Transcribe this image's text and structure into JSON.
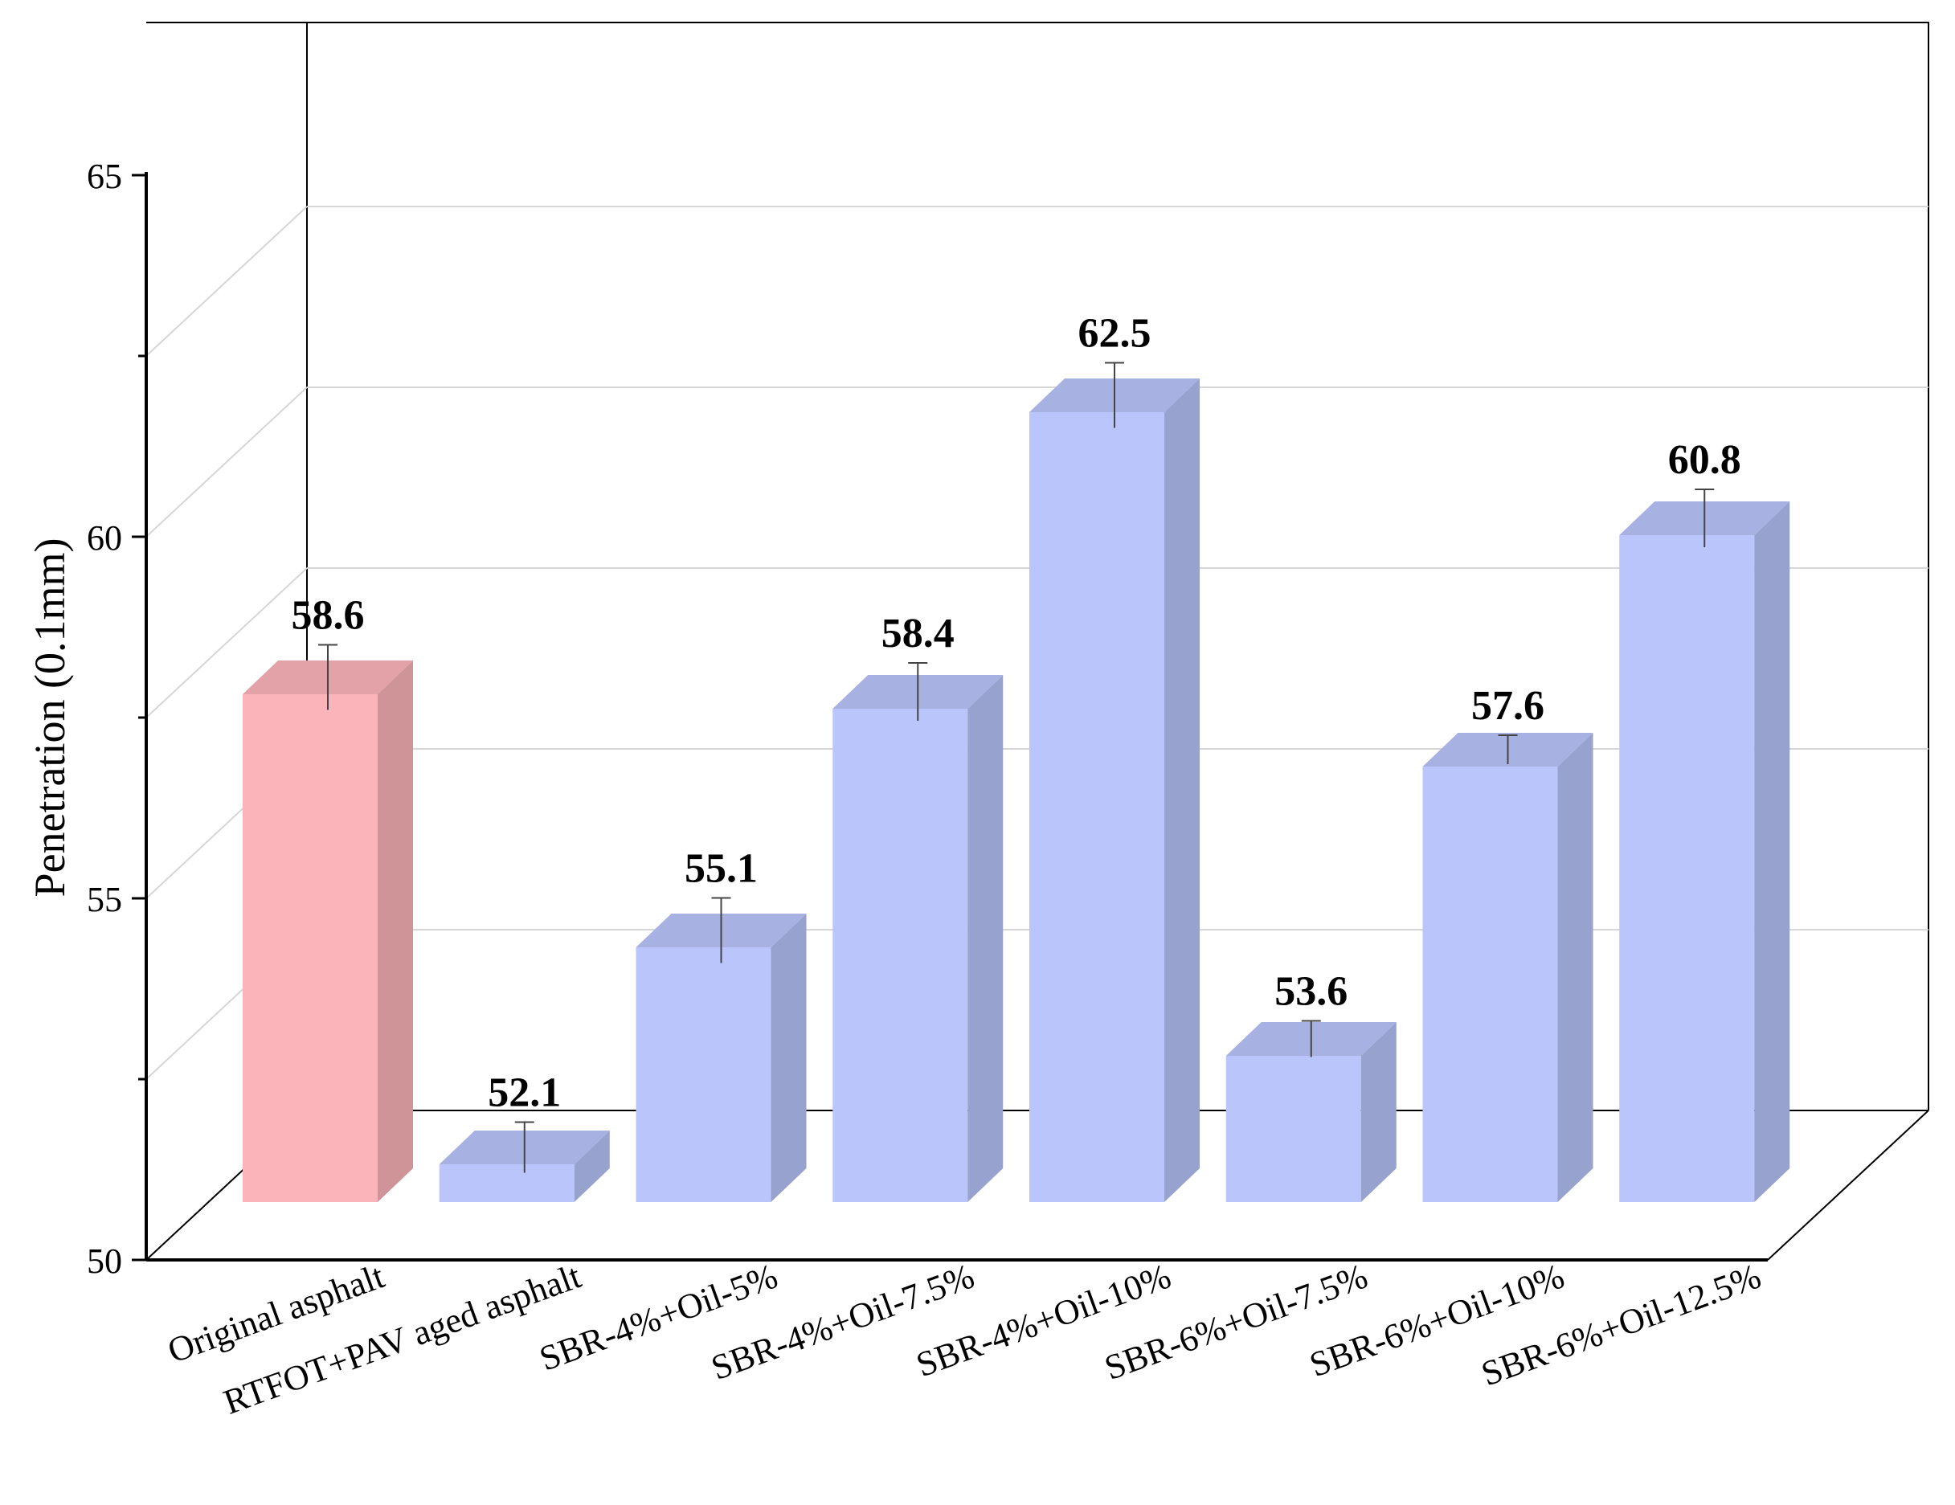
{
  "chart_data": {
    "type": "bar",
    "title": "",
    "xlabel": "",
    "ylabel": "Penetration (0.1mm)",
    "ylim": [
      50,
      65
    ],
    "yticks": [
      "50",
      "55",
      "60",
      "65"
    ],
    "grid": true,
    "categories": [
      "Original asphalt",
      "RTFOT+PAV aged asphalt",
      "SBR-4%+Oil-5%",
      "SBR-4%+Oil-7.5%",
      "SBR-4%+Oil-10%",
      "SBR-6%+Oil-7.5%",
      "SBR-6%+Oil-10%",
      "SBR-6%+Oil-12.5%"
    ],
    "values": [
      58.6,
      52.1,
      55.1,
      58.4,
      62.5,
      53.6,
      57.6,
      60.8
    ],
    "value_labels": [
      "58.6",
      "52.1",
      "55.1",
      "58.4",
      "62.5",
      "53.6",
      "57.6",
      "60.8"
    ],
    "error": [
      0.45,
      0.35,
      0.45,
      0.4,
      0.45,
      0.25,
      0.2,
      0.4
    ],
    "colors": {
      "highlight": "#fbb4b9",
      "default": "#b9c5fb"
    },
    "highlight_index": 0
  }
}
